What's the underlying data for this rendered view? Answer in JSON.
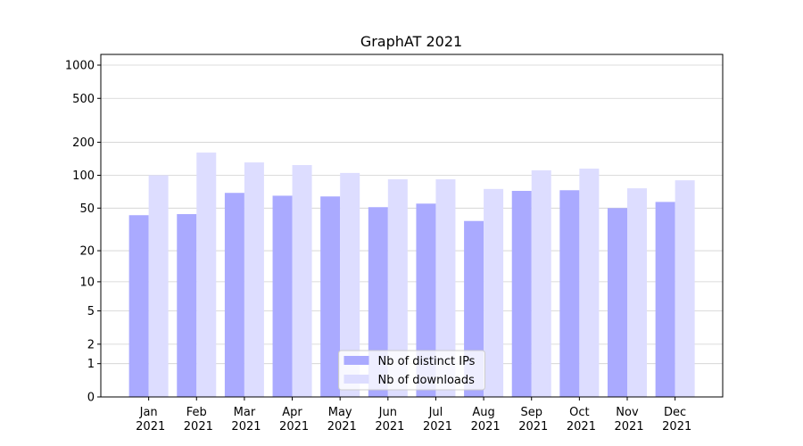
{
  "chart_data": {
    "type": "bar",
    "title": "GraphAT 2021",
    "categories": [
      "Jan 2021",
      "Feb 2021",
      "Mar 2021",
      "Apr 2021",
      "May 2021",
      "Jun 2021",
      "Jul 2021",
      "Aug 2021",
      "Sep 2021",
      "Oct 2021",
      "Nov 2021",
      "Dec 2021"
    ],
    "series": [
      {
        "name": "Nb of distinct IPs",
        "color": "#aaaaff",
        "values": [
          43,
          44,
          69,
          65,
          64,
          51,
          55,
          38,
          72,
          73,
          50,
          57
        ]
      },
      {
        "name": "Nb of downloads",
        "color": "#ddddff",
        "values": [
          100,
          161,
          131,
          124,
          105,
          92,
          92,
          75,
          111,
          115,
          76,
          90
        ]
      }
    ],
    "y_scale": "log1p",
    "ylim": [
      0,
      1250
    ],
    "yticks": [
      0,
      1,
      2,
      5,
      10,
      20,
      50,
      100,
      200,
      500,
      1000
    ],
    "grid": true,
    "legend_position": "lower center"
  }
}
